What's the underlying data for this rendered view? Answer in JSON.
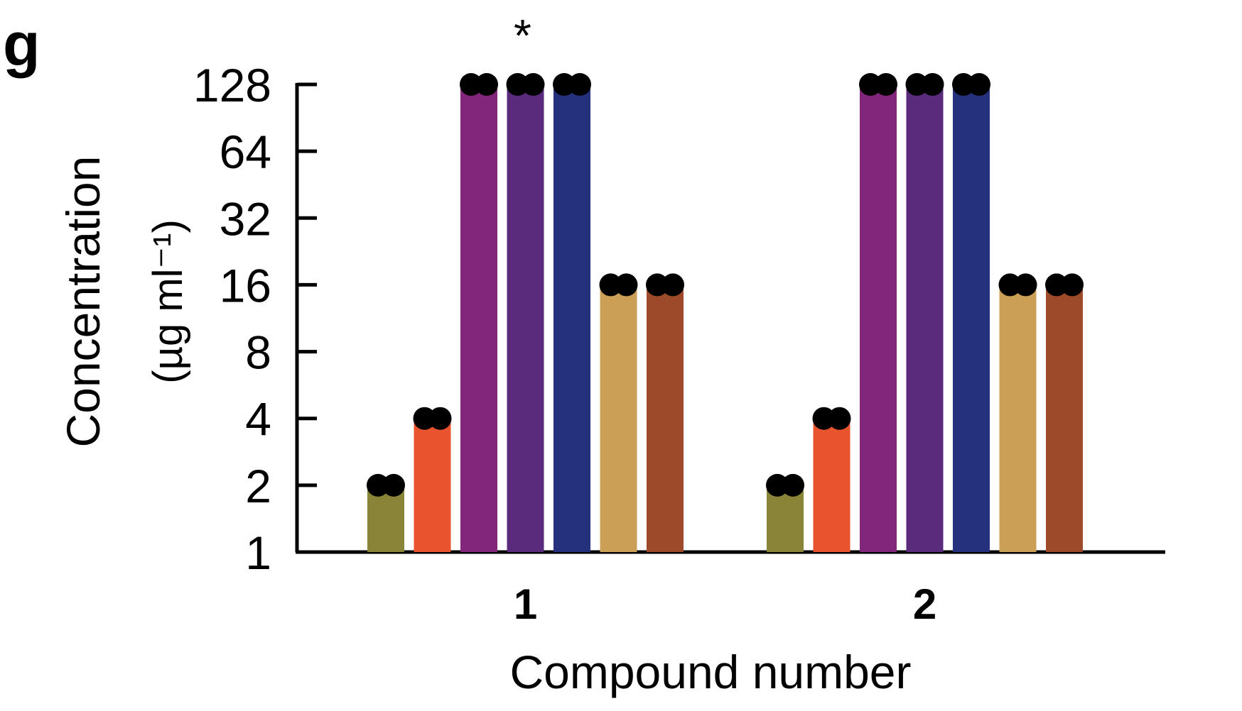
{
  "panel_label": "g",
  "chart_data": {
    "type": "bar",
    "scale": "log2",
    "ylabel": "Concentration",
    "ylabel_unit": "(µg ml⁻¹)",
    "xlabel": "Compound number",
    "categories": [
      "1",
      "2"
    ],
    "yticks": [
      1,
      2,
      4,
      8,
      16,
      32,
      64,
      128
    ],
    "ylim": [
      1,
      128
    ],
    "grid": false,
    "annotations": [
      {
        "category": "1",
        "text": "*"
      }
    ],
    "series": [
      {
        "color": "#8a8438",
        "values": [
          2,
          2
        ],
        "replicates": [
          [
            2,
            2
          ],
          [
            2,
            2
          ]
        ]
      },
      {
        "color": "#e9542f",
        "values": [
          4,
          4
        ],
        "replicates": [
          [
            4,
            4
          ],
          [
            4,
            4
          ]
        ]
      },
      {
        "color": "#82267c",
        "values": [
          128,
          128
        ],
        "replicates": [
          [
            128,
            128
          ],
          [
            128,
            128
          ]
        ]
      },
      {
        "color": "#5a2a7d",
        "values": [
          128,
          128
        ],
        "replicates": [
          [
            128,
            128
          ],
          [
            128,
            128
          ]
        ]
      },
      {
        "color": "#25317c",
        "values": [
          128,
          128
        ],
        "replicates": [
          [
            128,
            128
          ],
          [
            128,
            128
          ]
        ]
      },
      {
        "color": "#cc9f56",
        "values": [
          16,
          16
        ],
        "replicates": [
          [
            16,
            16
          ],
          [
            16,
            16
          ]
        ]
      },
      {
        "color": "#9c4a29",
        "values": [
          16,
          16
        ],
        "replicates": [
          [
            16,
            16
          ],
          [
            16,
            16
          ]
        ]
      }
    ]
  }
}
